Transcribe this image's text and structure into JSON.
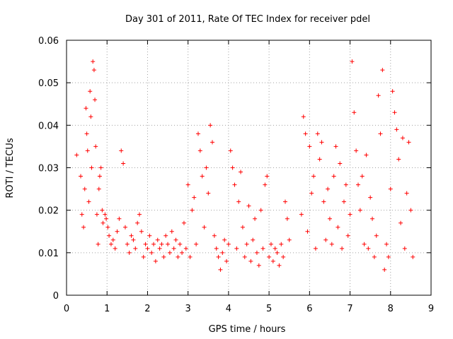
{
  "chart_data": {
    "type": "scatter",
    "title": "Day 301 of 2011, Rate Of TEC Index for receiver pdel",
    "xlabel": "GPS time / hours",
    "ylabel": "ROTI / TECUs",
    "xlim": [
      0,
      9
    ],
    "ylim": [
      0,
      0.06
    ],
    "x_ticks": [
      0,
      1,
      2,
      3,
      4,
      5,
      6,
      7,
      8,
      9
    ],
    "x_tick_labels": [
      "0",
      "1",
      "2",
      "3",
      "4",
      "5",
      "6",
      "7",
      "8",
      "9"
    ],
    "y_ticks": [
      0,
      0.01,
      0.02,
      0.03,
      0.04,
      0.05,
      0.06
    ],
    "y_tick_labels": [
      "0",
      "0.01",
      "0.02",
      "0.03",
      "0.04",
      "0.05",
      "0.06"
    ],
    "grid": true,
    "marker": "+",
    "marker_color": "#ff0000",
    "series": [
      {
        "name": "ROTI",
        "x": [
          0.25,
          0.35,
          0.38,
          0.42,
          0.45,
          0.48,
          0.5,
          0.52,
          0.55,
          0.58,
          0.6,
          0.62,
          0.65,
          0.68,
          0.7,
          0.72,
          0.75,
          0.78,
          0.8,
          0.82,
          0.85,
          0.88,
          0.9,
          0.95,
          0.98,
          1.02,
          1.05,
          1.1,
          1.15,
          1.2,
          1.25,
          1.3,
          1.35,
          1.4,
          1.45,
          1.5,
          1.55,
          1.6,
          1.65,
          1.7,
          1.75,
          1.8,
          1.85,
          1.9,
          1.95,
          2.0,
          2.05,
          2.1,
          2.15,
          2.2,
          2.25,
          2.3,
          2.35,
          2.4,
          2.45,
          2.5,
          2.55,
          2.6,
          2.65,
          2.7,
          2.75,
          2.8,
          2.85,
          2.9,
          2.95,
          3.0,
          3.05,
          3.1,
          3.15,
          3.2,
          3.25,
          3.3,
          3.35,
          3.4,
          3.45,
          3.5,
          3.55,
          3.6,
          3.65,
          3.7,
          3.75,
          3.8,
          3.85,
          3.9,
          3.95,
          4.0,
          4.05,
          4.1,
          4.15,
          4.2,
          4.25,
          4.3,
          4.35,
          4.4,
          4.45,
          4.5,
          4.55,
          4.6,
          4.65,
          4.7,
          4.75,
          4.8,
          4.85,
          4.9,
          4.95,
          5.0,
          5.05,
          5.1,
          5.15,
          5.2,
          5.25,
          5.3,
          5.35,
          5.4,
          5.45,
          5.5,
          5.8,
          5.85,
          5.9,
          5.95,
          6.0,
          6.05,
          6.1,
          6.15,
          6.2,
          6.25,
          6.3,
          6.35,
          6.4,
          6.45,
          6.5,
          6.55,
          6.6,
          6.65,
          6.7,
          6.75,
          6.8,
          6.85,
          6.9,
          6.95,
          7.0,
          7.05,
          7.1,
          7.15,
          7.2,
          7.25,
          7.3,
          7.35,
          7.4,
          7.45,
          7.5,
          7.55,
          7.6,
          7.65,
          7.7,
          7.75,
          7.8,
          7.85,
          7.9,
          7.95,
          8.0,
          8.05,
          8.1,
          8.15,
          8.2,
          8.25,
          8.3,
          8.35,
          8.4,
          8.45,
          8.5,
          8.55
        ],
        "y": [
          0.033,
          0.028,
          0.019,
          0.016,
          0.025,
          0.044,
          0.038,
          0.034,
          0.022,
          0.048,
          0.042,
          0.03,
          0.055,
          0.053,
          0.046,
          0.035,
          0.019,
          0.012,
          0.025,
          0.028,
          0.03,
          0.02,
          0.017,
          0.019,
          0.018,
          0.016,
          0.014,
          0.012,
          0.013,
          0.011,
          0.015,
          0.018,
          0.034,
          0.031,
          0.016,
          0.012,
          0.01,
          0.014,
          0.013,
          0.011,
          0.017,
          0.019,
          0.015,
          0.009,
          0.012,
          0.011,
          0.014,
          0.01,
          0.012,
          0.008,
          0.013,
          0.011,
          0.012,
          0.009,
          0.014,
          0.012,
          0.01,
          0.015,
          0.011,
          0.013,
          0.009,
          0.012,
          0.01,
          0.017,
          0.011,
          0.026,
          0.009,
          0.02,
          0.023,
          0.012,
          0.038,
          0.034,
          0.028,
          0.016,
          0.03,
          0.024,
          0.04,
          0.036,
          0.014,
          0.011,
          0.009,
          0.006,
          0.01,
          0.013,
          0.008,
          0.012,
          0.034,
          0.03,
          0.026,
          0.011,
          0.022,
          0.029,
          0.016,
          0.009,
          0.012,
          0.021,
          0.008,
          0.013,
          0.018,
          0.01,
          0.007,
          0.02,
          0.011,
          0.026,
          0.028,
          0.009,
          0.012,
          0.008,
          0.011,
          0.01,
          0.007,
          0.012,
          0.009,
          0.022,
          0.018,
          0.013,
          0.019,
          0.042,
          0.038,
          0.015,
          0.035,
          0.024,
          0.028,
          0.011,
          0.038,
          0.032,
          0.036,
          0.022,
          0.013,
          0.025,
          0.018,
          0.012,
          0.028,
          0.035,
          0.016,
          0.031,
          0.011,
          0.022,
          0.026,
          0.014,
          0.019,
          0.055,
          0.043,
          0.034,
          0.026,
          0.02,
          0.028,
          0.012,
          0.033,
          0.011,
          0.023,
          0.018,
          0.009,
          0.014,
          0.047,
          0.038,
          0.053,
          0.006,
          0.012,
          0.009,
          0.025,
          0.048,
          0.043,
          0.039,
          0.032,
          0.017,
          0.037,
          0.011,
          0.024,
          0.036,
          0.02,
          0.009
        ]
      }
    ]
  }
}
